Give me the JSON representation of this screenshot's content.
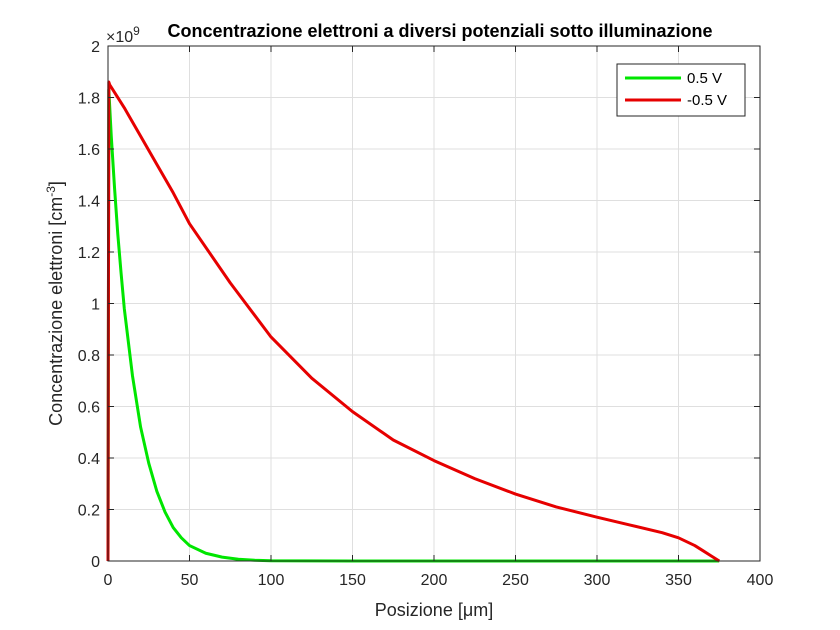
{
  "chart_data": {
    "type": "line",
    "title": "Concentrazione elettroni a diversi potenziali sotto illuminazione",
    "xlabel": "Posizione [μm]",
    "ylabel": "Concentrazione elettroni [cm",
    "ylabel_sup": "-3",
    "ylabel_end": "]",
    "y_exponent_base": "×10",
    "y_exponent": "9",
    "xlim": [
      0,
      400
    ],
    "ylim": [
      0,
      2
    ],
    "xticks": [
      "0",
      "50",
      "100",
      "150",
      "200",
      "250",
      "300",
      "350",
      "400"
    ],
    "yticks": [
      "0",
      "0.2",
      "0.4",
      "0.6",
      "0.8",
      "1",
      "1.2",
      "1.4",
      "1.6",
      "1.8",
      "2"
    ],
    "grid": true,
    "legend_position": "top-right",
    "series": [
      {
        "name": "0.5 V",
        "color": "#00e600",
        "x": [
          0,
          0.5,
          1,
          2,
          4,
          6,
          8,
          10,
          15,
          20,
          25,
          30,
          35,
          40,
          45,
          50,
          60,
          70,
          80,
          90,
          100,
          120,
          150,
          200,
          250,
          300,
          350,
          375
        ],
        "y": [
          0,
          1.83,
          1.77,
          1.65,
          1.45,
          1.27,
          1.12,
          0.98,
          0.72,
          0.52,
          0.38,
          0.27,
          0.19,
          0.13,
          0.09,
          0.06,
          0.03,
          0.015,
          0.007,
          0.003,
          0.001,
          0.0003,
          0,
          0,
          0,
          0,
          0,
          0
        ]
      },
      {
        "name": "-0.5 V",
        "color": "#e60000",
        "x": [
          0,
          0.5,
          1,
          5,
          10,
          20,
          30,
          40,
          50,
          75,
          100,
          125,
          150,
          175,
          200,
          225,
          250,
          275,
          300,
          320,
          340,
          350,
          360,
          365,
          370,
          375
        ],
        "y": [
          0,
          1.86,
          1.85,
          1.81,
          1.76,
          1.65,
          1.54,
          1.43,
          1.31,
          1.08,
          0.87,
          0.71,
          0.58,
          0.47,
          0.39,
          0.32,
          0.26,
          0.21,
          0.17,
          0.14,
          0.11,
          0.09,
          0.06,
          0.04,
          0.02,
          0
        ]
      }
    ]
  }
}
